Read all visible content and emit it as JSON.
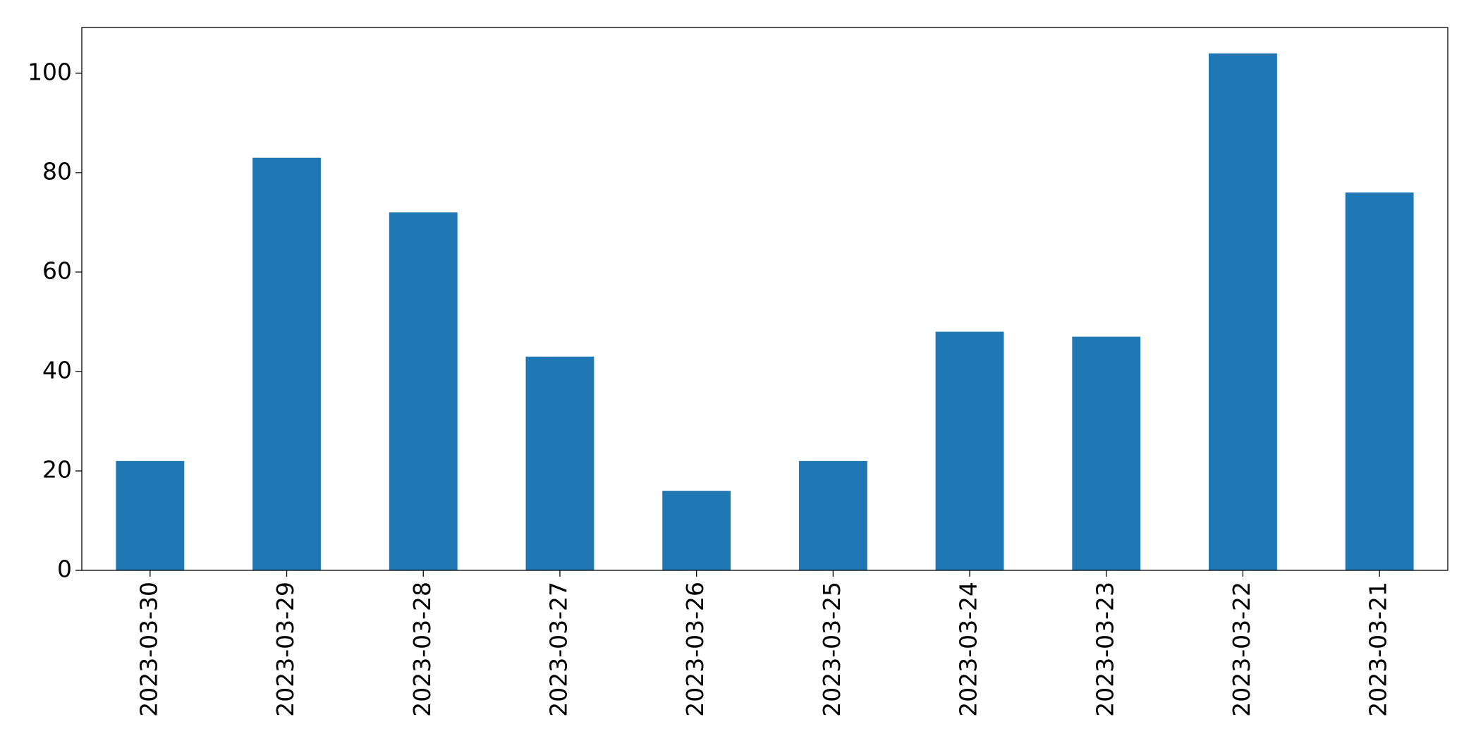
{
  "chart_data": {
    "type": "bar",
    "categories": [
      "2023-03-30",
      "2023-03-29",
      "2023-03-28",
      "2023-03-27",
      "2023-03-26",
      "2023-03-25",
      "2023-03-24",
      "2023-03-23",
      "2023-03-22",
      "2023-03-21"
    ],
    "values": [
      22,
      83,
      72,
      43,
      16,
      22,
      48,
      47,
      104,
      76
    ],
    "color": "#1f77b4",
    "ylim": [
      0,
      109.2
    ],
    "yticks": [
      0,
      20,
      40,
      60,
      80,
      100
    ],
    "grid": false
  }
}
